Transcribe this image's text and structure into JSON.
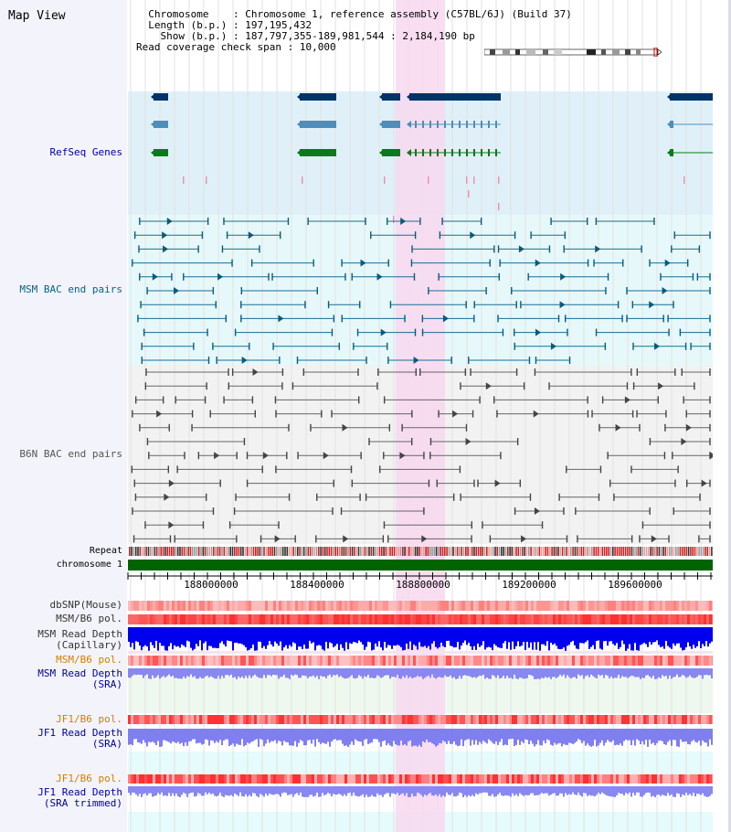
{
  "view_title": "Map View",
  "header": {
    "chromosome_label": "Chromosome",
    "chromosome_value": "Chromosome 1, reference assembly (C57BL/6J) (Build 37)",
    "length_label": "Length (b.p.)",
    "length_value": "197,195,432",
    "show_label": "Show (b.p.)",
    "show_value": "187,797,355-189,981,544 : 2,184,190 bp",
    "coverage_label": "Read coverage check span",
    "coverage_value": "10,000"
  },
  "tracks": {
    "refseq": "RefSeq Genes",
    "msm_bac": "MSM BAC end pairs",
    "b6n_bac": "B6N BAC end pairs",
    "repeat": "Repeat",
    "chromosome": "chromosome 1",
    "dbsnp": "dbSNP(Mouse)",
    "msm_b6_pol": "MSM/B6 pol.",
    "msm_depth_cap_1": "MSM Read Depth",
    "msm_depth_cap_2": "(Capillary)",
    "msm_b6_pol_sra": "MSM/B6 pol.",
    "msm_depth_sra_1": "MSM Read Depth",
    "msm_depth_sra_2": "(SRA)",
    "jf1_b6_pol": "JF1/B6 pol.",
    "jf1_depth_1": "JF1 Read Depth",
    "jf1_depth_2": "(SRA)",
    "jf1_b6_pol_trim": "JF1/B6 pol.",
    "jf1_trim_1": "JF1 Read Depth",
    "jf1_trim_2": "(SRA trimmed)"
  },
  "axis_ticks": [
    "188000000",
    "188400000",
    "188800000",
    "189200000",
    "189600000"
  ],
  "colors": {
    "refseq_bg": "#dff0f8",
    "msm_bg": "#e6f8fa",
    "b6n_bg": "#f2f2f2",
    "highlight": "#f8d8f0",
    "chromosome_bar": "#006400",
    "label_blue": "#000099",
    "label_teal": "#006680",
    "label_gray": "#555555",
    "label_orange": "#d08000"
  }
}
